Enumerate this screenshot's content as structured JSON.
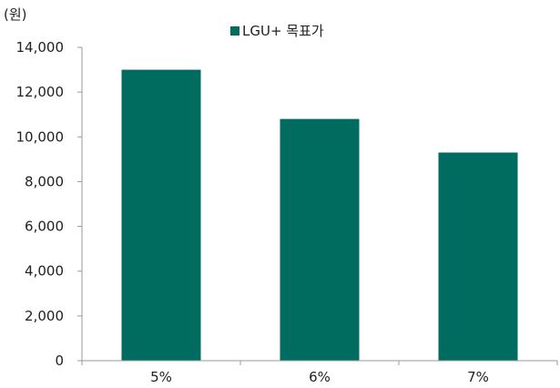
{
  "chart_data": {
    "type": "bar",
    "categories": [
      "5%",
      "6%",
      "7%"
    ],
    "series": [
      {
        "name": "LGU+ 목표가",
        "values": [
          13000,
          10800,
          9300
        ],
        "color": "#006b5f"
      }
    ],
    "ylabel": "(원)",
    "ylim": [
      0,
      14000
    ],
    "yticks": [
      "0",
      "2,000",
      "4,000",
      "6,000",
      "8,000",
      "10,000",
      "12,000",
      "14,000"
    ],
    "ytick_values": [
      0,
      2000,
      4000,
      6000,
      8000,
      10000,
      12000,
      14000
    ],
    "legend_position": "top-center",
    "grid": false
  }
}
